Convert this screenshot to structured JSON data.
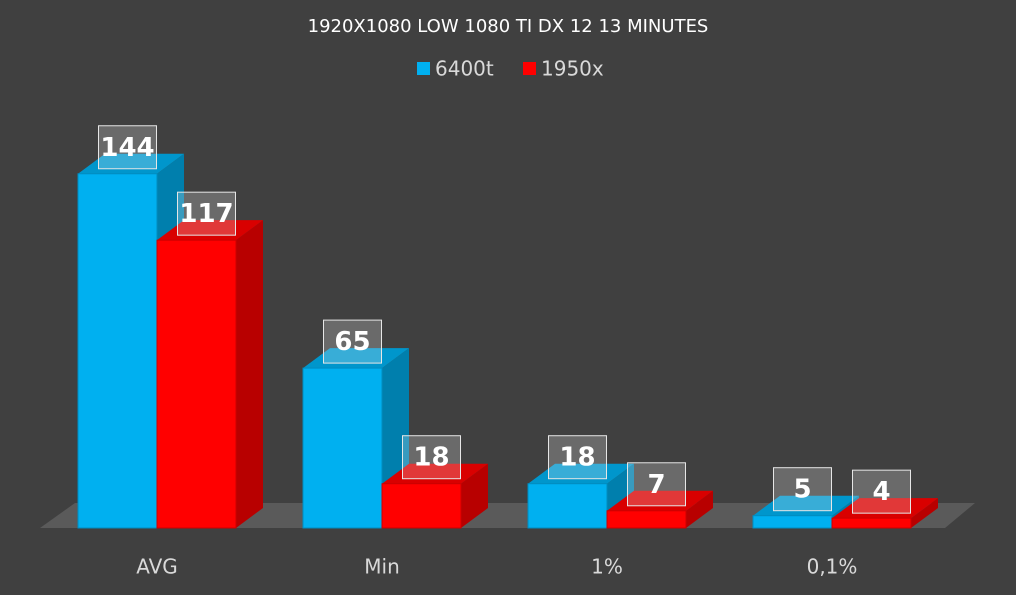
{
  "chart_data": {
    "type": "bar3d",
    "title": "1920X1080 LOW 1080 TI DX 12 13 MINUTES",
    "categories": [
      "AVG",
      "Min",
      "1%",
      "0,1%"
    ],
    "series": [
      {
        "name": "6400t",
        "color": "#00b0f0",
        "values": [
          144,
          65,
          18,
          5
        ]
      },
      {
        "name": "1950x",
        "color": "#ff0000",
        "values": [
          117,
          18,
          7,
          4
        ]
      }
    ],
    "legend": "top"
  }
}
